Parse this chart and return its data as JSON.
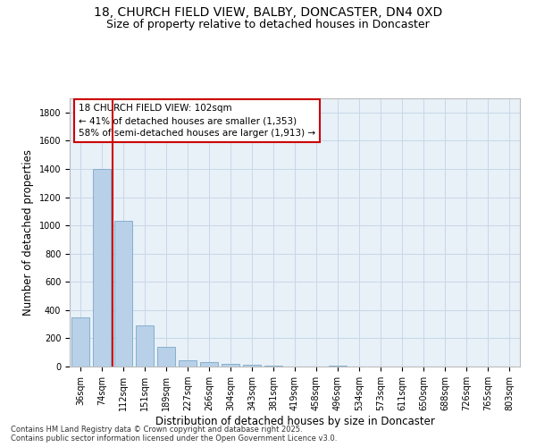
{
  "title_line1": "18, CHURCH FIELD VIEW, BALBY, DONCASTER, DN4 0XD",
  "title_line2": "Size of property relative to detached houses in Doncaster",
  "xlabel": "Distribution of detached houses by size in Doncaster",
  "ylabel": "Number of detached properties",
  "categories": [
    "36sqm",
    "74sqm",
    "112sqm",
    "151sqm",
    "189sqm",
    "227sqm",
    "266sqm",
    "304sqm",
    "343sqm",
    "381sqm",
    "419sqm",
    "458sqm",
    "496sqm",
    "534sqm",
    "573sqm",
    "611sqm",
    "650sqm",
    "688sqm",
    "726sqm",
    "765sqm",
    "803sqm"
  ],
  "values": [
    350,
    1400,
    1030,
    290,
    140,
    45,
    30,
    20,
    15,
    5,
    0,
    0,
    5,
    0,
    0,
    0,
    0,
    0,
    0,
    0,
    0
  ],
  "bar_color": "#b8d0e8",
  "bar_edge_color": "#7aaac8",
  "vline_x_idx": 1,
  "vline_color": "#cc0000",
  "annotation_lines": [
    "18 CHURCH FIELD VIEW: 102sqm",
    "← 41% of detached houses are smaller (1,353)",
    "58% of semi-detached houses are larger (1,913) →"
  ],
  "box_edge_color": "#cc0000",
  "ylim": [
    0,
    1900
  ],
  "yticks": [
    0,
    200,
    400,
    600,
    800,
    1000,
    1200,
    1400,
    1600,
    1800
  ],
  "grid_color": "#c8d8e8",
  "plot_bg_color": "#e8f0f8",
  "fig_bg_color": "#ffffff",
  "footer_line1": "Contains HM Land Registry data © Crown copyright and database right 2025.",
  "footer_line2": "Contains public sector information licensed under the Open Government Licence v3.0.",
  "title1_fontsize": 10,
  "title2_fontsize": 9,
  "axis_label_fontsize": 8.5,
  "tick_fontsize": 7,
  "annotation_fontsize": 7.5,
  "footer_fontsize": 6
}
